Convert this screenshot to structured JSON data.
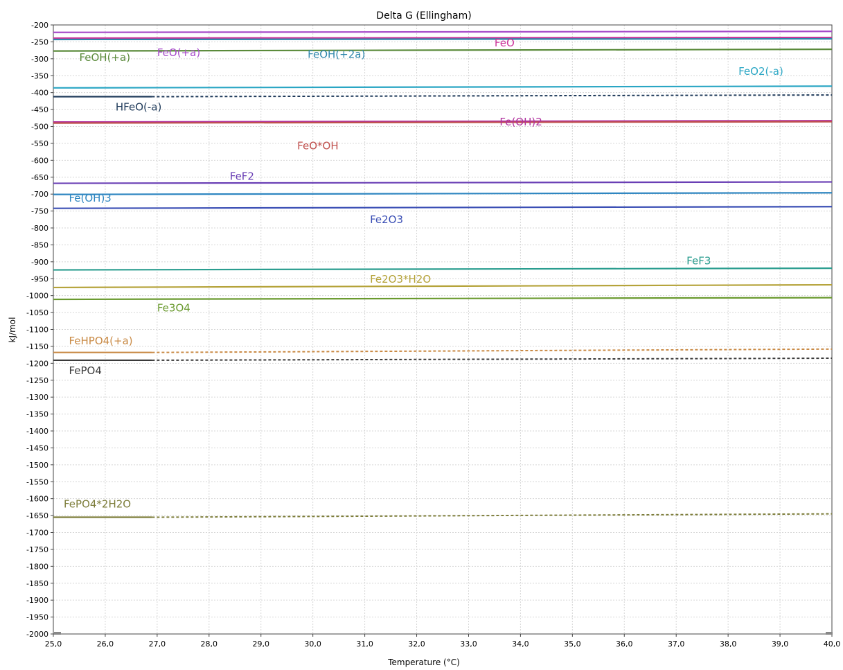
{
  "chart_data": {
    "type": "line",
    "title": "Delta G (Ellingham)",
    "xlabel": "Temperature (°C)",
    "ylabel": "kJ/mol",
    "xlim": [
      25.0,
      40.0
    ],
    "ylim": [
      -2000,
      -200
    ],
    "xticks": [
      "25,0",
      "26,0",
      "27,0",
      "28,0",
      "29,0",
      "30,0",
      "31,0",
      "32,0",
      "33,0",
      "34,0",
      "35,0",
      "36,0",
      "37,0",
      "38,0",
      "39,0",
      "40,0"
    ],
    "grid": true,
    "legend": "none",
    "series": [
      {
        "name": "FeO(+a)",
        "color": "#a64ac9",
        "label_at": [
          27.0,
          -292
        ],
        "segments": [
          {
            "style": "solid",
            "x": [
              25.0,
              40.0
            ],
            "y": [
              -222,
              -219
            ]
          }
        ]
      },
      {
        "name": "FeO",
        "color": "#cc3399",
        "label_at": [
          33.5,
          -263
        ],
        "segments": [
          {
            "style": "solid",
            "x": [
              25.0,
              40.0
            ],
            "y": [
              -239,
              -237
            ]
          }
        ]
      },
      {
        "name": "FeOH(+2a)",
        "color": "#2e86ab",
        "label_at": [
          29.9,
          -297
        ],
        "segments": [
          {
            "style": "solid",
            "x": [
              25.0,
              40.0
            ],
            "y": [
              -243,
              -241
            ]
          }
        ]
      },
      {
        "name": "FeOH(+a)",
        "color": "#5a8a3a",
        "label_at": [
          25.5,
          -306
        ],
        "segments": [
          {
            "style": "solid",
            "x": [
              25.0,
              40.0
            ],
            "y": [
              -277,
              -272
            ]
          }
        ]
      },
      {
        "name": "FeO2(-a)",
        "color": "#2aa6c4",
        "label_at": [
          38.2,
          -347
        ],
        "segments": [
          {
            "style": "solid",
            "x": [
              25.0,
              40.0
            ],
            "y": [
              -386,
              -381
            ]
          }
        ]
      },
      {
        "name": "HFeO(-a)",
        "color": "#1f3a5a",
        "label_at": [
          26.2,
          -453
        ],
        "segments": [
          {
            "style": "solid",
            "x": [
              25.0,
              26.9
            ],
            "y": [
              -412,
              -412
            ]
          },
          {
            "style": "dashed",
            "x": [
              26.9,
              40.0
            ],
            "y": [
              -412,
              -407
            ]
          }
        ]
      },
      {
        "name": "Fe(OH)2",
        "color": "#b0309e",
        "label_at": [
          33.6,
          -497
        ],
        "segments": [
          {
            "style": "solid",
            "x": [
              25.0,
              40.0
            ],
            "y": [
              -487,
              -483
            ]
          }
        ]
      },
      {
        "name": "FeO*OH",
        "color": "#c0504d",
        "label_at": [
          29.7,
          -568
        ],
        "segments": [
          {
            "style": "solid",
            "x": [
              25.0,
              40.0
            ],
            "y": [
              -490,
              -486
            ]
          }
        ]
      },
      {
        "name": "FeF2",
        "color": "#6a3fb5",
        "label_at": [
          28.4,
          -658
        ],
        "segments": [
          {
            "style": "solid",
            "x": [
              25.0,
              40.0
            ],
            "y": [
              -668,
              -664
            ]
          }
        ]
      },
      {
        "name": "Fe(OH)3",
        "color": "#2e86c1",
        "label_at": [
          25.3,
          -722
        ],
        "segments": [
          {
            "style": "solid",
            "x": [
              25.0,
              40.0
            ],
            "y": [
              -701,
              -696
            ]
          }
        ]
      },
      {
        "name": "Fe2O3",
        "color": "#3b4fb5",
        "label_at": [
          31.1,
          -786
        ],
        "segments": [
          {
            "style": "solid",
            "x": [
              25.0,
              40.0
            ],
            "y": [
              -742,
              -737
            ]
          }
        ]
      },
      {
        "name": "FeF3",
        "color": "#2a9d8f",
        "label_at": [
          37.2,
          -907
        ],
        "segments": [
          {
            "style": "solid",
            "x": [
              25.0,
              40.0
            ],
            "y": [
              -924,
              -919
            ]
          }
        ]
      },
      {
        "name": "Fe2O3*H2O",
        "color": "#b5a33a",
        "label_at": [
          31.1,
          -962
        ],
        "segments": [
          {
            "style": "solid",
            "x": [
              25.0,
              40.0
            ],
            "y": [
              -976,
              -968
            ]
          }
        ]
      },
      {
        "name": "Fe3O4",
        "color": "#6a9a2f",
        "label_at": [
          27.0,
          -1047
        ],
        "segments": [
          {
            "style": "solid",
            "x": [
              25.0,
              40.0
            ],
            "y": [
              -1011,
              -1006
            ]
          }
        ]
      },
      {
        "name": "FeHPO4(+a)",
        "color": "#c98a45",
        "label_at": [
          25.3,
          -1144
        ],
        "segments": [
          {
            "style": "solid",
            "x": [
              25.0,
              26.9
            ],
            "y": [
              -1168,
              -1168
            ]
          },
          {
            "style": "dashed",
            "x": [
              26.9,
              40.0
            ],
            "y": [
              -1168,
              -1158
            ]
          }
        ]
      },
      {
        "name": "FePO4",
        "color": "#3a3a3a",
        "label_at": [
          25.3,
          -1232
        ],
        "segments": [
          {
            "style": "solid",
            "x": [
              25.0,
              26.9
            ],
            "y": [
              -1191,
              -1191
            ]
          },
          {
            "style": "dashed",
            "x": [
              26.9,
              40.0
            ],
            "y": [
              -1191,
              -1185
            ]
          }
        ]
      },
      {
        "name": "FePO4*2H2O",
        "color": "#7d7d3a",
        "label_at": [
          25.2,
          -1626
        ],
        "segments": [
          {
            "style": "solid",
            "x": [
              25.0,
              26.9
            ],
            "y": [
              -1655,
              -1655
            ]
          },
          {
            "style": "dashed",
            "x": [
              26.9,
              40.0
            ],
            "y": [
              -1655,
              -1645
            ]
          }
        ]
      }
    ]
  }
}
